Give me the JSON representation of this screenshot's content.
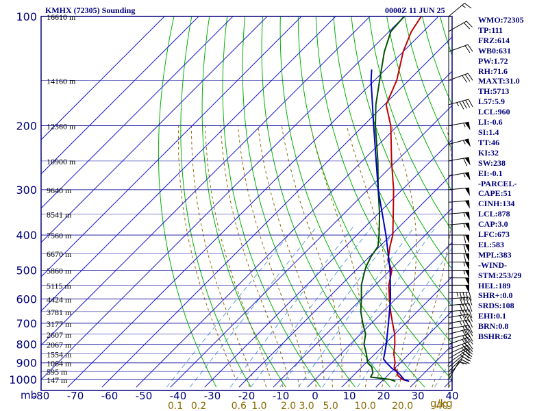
{
  "header": {
    "station": "KMHX (72305) Sounding",
    "time": "0000Z 11 JUN 25"
  },
  "units": {
    "pressure_unit": "mb",
    "mixing_ratio_unit": "g/kg"
  },
  "indices": [
    "WMO:72305",
    "TP:111",
    "FRZ:614",
    "WB0:631",
    "PW:1.72",
    "RH:71.6",
    "MAXT:31.0",
    "TH:5713",
    "L57:5.9",
    "LCL:960",
    "LI:-0.6",
    "SI:1.4",
    "TT:46",
    "KI:32",
    "SW:238",
    "EI:-0.1",
    "-PARCEL-",
    "CAPE:51",
    "CINH:134",
    "LCL:878",
    "CAP:3.0",
    "LFC:673",
    "EL:583",
    "MPL:383",
    "-WIND-",
    "STM:253/29",
    "HEL:189",
    "SHR+:0.0",
    "SRDS:108",
    "EHI:0.1",
    "BRN:0.8",
    "BSHR:62"
  ],
  "colors": {
    "frame": "#00007a",
    "isobar": "#2020a0",
    "isotherm": "#1a1ad0",
    "dry_adiabat": "#00b000",
    "moist_adiabat": "#8a6a00",
    "mixing_ratio": "#5aa0d0",
    "temperature": "#c00000",
    "dewpoint": "#005000",
    "parcel": "#0000c0",
    "mixing_label": "#8a6a00",
    "wind_barb": "#000000"
  },
  "chart_data": {
    "type": "skew-t",
    "log_p_axis": true,
    "ylim": [
      1000,
      100
    ],
    "xlim": [
      -80,
      40
    ],
    "pressure_ticks": [
      100,
      200,
      300,
      400,
      500,
      600,
      700,
      800,
      900,
      1000
    ],
    "temperature_ticks": [
      -80,
      -70,
      -60,
      -50,
      -40,
      -30,
      -20,
      -10,
      0,
      10,
      20,
      30,
      40
    ],
    "temperature_tick_labels": [
      "-80",
      "-70",
      "-60",
      "-50",
      "-40",
      "-30",
      "-20",
      "-10",
      "0",
      "10",
      "20",
      "30",
      "40"
    ],
    "height_labels": [
      {
        "p": 100,
        "label": "16610 m"
      },
      {
        "p": 150,
        "label": "14160 m"
      },
      {
        "p": 200,
        "label": "12360 m"
      },
      {
        "p": 250,
        "label": "10900 m"
      },
      {
        "p": 300,
        "label": "9640 m"
      },
      {
        "p": 350,
        "label": "8541 m"
      },
      {
        "p": 400,
        "label": "7560 m"
      },
      {
        "p": 450,
        "label": "6670 m"
      },
      {
        "p": 500,
        "label": "5860 m"
      },
      {
        "p": 550,
        "label": "5115 m"
      },
      {
        "p": 600,
        "label": "4424 m"
      },
      {
        "p": 650,
        "label": "3781 m"
      },
      {
        "p": 700,
        "label": "3177 m"
      },
      {
        "p": 750,
        "label": "2607 m"
      },
      {
        "p": 800,
        "label": "2067 m"
      },
      {
        "p": 850,
        "label": "1554 m"
      },
      {
        "p": 900,
        "label": "1064 m"
      },
      {
        "p": 950,
        "label": "595 m"
      },
      {
        "p": 1000,
        "label": "147 m"
      }
    ],
    "mixing_ratios": [
      {
        "w": 0.1,
        "label": "0.1"
      },
      {
        "w": 0.2,
        "label": "0.2"
      },
      {
        "w": 0.6,
        "label": "0.6"
      },
      {
        "w": 1.0,
        "label": "1.0"
      },
      {
        "w": 2.0,
        "label": "2.0"
      },
      {
        "w": 3.0,
        "label": "3.0"
      },
      {
        "w": 5.0,
        "label": "5.0"
      },
      {
        "w": 10.0,
        "label": "10.0"
      },
      {
        "w": 20.0,
        "label": "20.0"
      },
      {
        "w": 40.0,
        "label": "40"
      }
    ],
    "series": [
      {
        "kind": "temperature",
        "points": [
          [
            1012,
            28.0
          ],
          [
            1000,
            25.5
          ],
          [
            975,
            23.0
          ],
          [
            950,
            21.5
          ],
          [
            925,
            19.5
          ],
          [
            900,
            18.5
          ],
          [
            850,
            15.5
          ],
          [
            800,
            13.0
          ],
          [
            750,
            10.0
          ],
          [
            700,
            6.2
          ],
          [
            650,
            2.2
          ],
          [
            600,
            -1.8
          ],
          [
            550,
            -6.0
          ],
          [
            500,
            -9.5
          ],
          [
            470,
            -13.5
          ],
          [
            430,
            -17.0
          ],
          [
            400,
            -19.5
          ],
          [
            350,
            -25.5
          ],
          [
            300,
            -32.5
          ],
          [
            250,
            -41.5
          ],
          [
            200,
            -52.0
          ],
          [
            175,
            -59.5
          ],
          [
            150,
            -63.5
          ],
          [
            125,
            -70.0
          ],
          [
            110,
            -73.5
          ],
          [
            100,
            -75.0
          ]
        ]
      },
      {
        "kind": "dewpoint",
        "points": [
          [
            1012,
            24.0
          ],
          [
            1000,
            22.0
          ],
          [
            985,
            15.5
          ],
          [
            960,
            15.0
          ],
          [
            925,
            13.0
          ],
          [
            900,
            10.5
          ],
          [
            850,
            7.5
          ],
          [
            800,
            4.0
          ],
          [
            750,
            1.5
          ],
          [
            700,
            -2.5
          ],
          [
            650,
            -6.5
          ],
          [
            600,
            -10.0
          ],
          [
            550,
            -14.0
          ],
          [
            520,
            -16.0
          ],
          [
            490,
            -18.0
          ],
          [
            460,
            -19.5
          ],
          [
            430,
            -20.5
          ],
          [
            400,
            -23.5
          ],
          [
            350,
            -29.5
          ],
          [
            300,
            -37.0
          ],
          [
            250,
            -45.5
          ],
          [
            200,
            -56.5
          ],
          [
            175,
            -62.5
          ],
          [
            150,
            -68.5
          ],
          [
            125,
            -75.5
          ],
          [
            110,
            -79.5
          ],
          [
            100,
            -80.0
          ]
        ]
      },
      {
        "kind": "parcel",
        "points": [
          [
            1012,
            28.0
          ],
          [
            1000,
            26.0
          ],
          [
            960,
            22.5
          ],
          [
            930,
            19.0
          ],
          [
            900,
            16.0
          ],
          [
            878,
            14.0
          ],
          [
            850,
            12.8
          ],
          [
            800,
            10.5
          ],
          [
            700,
            5.0
          ],
          [
            600,
            -1.5
          ],
          [
            500,
            -10.0
          ],
          [
            400,
            -21.5
          ],
          [
            300,
            -37.0
          ],
          [
            200,
            -57.0
          ],
          [
            150,
            -71.0
          ],
          [
            140,
            -74.0
          ]
        ]
      }
    ],
    "wind_barbs": [
      {
        "p": 1000,
        "dir": 210,
        "spd": 10
      },
      {
        "p": 975,
        "dir": 220,
        "spd": 15
      },
      {
        "p": 950,
        "dir": 225,
        "spd": 20
      },
      {
        "p": 925,
        "dir": 230,
        "spd": 20
      },
      {
        "p": 900,
        "dir": 235,
        "spd": 25
      },
      {
        "p": 875,
        "dir": 240,
        "spd": 25
      },
      {
        "p": 850,
        "dir": 245,
        "spd": 25
      },
      {
        "p": 825,
        "dir": 250,
        "spd": 30
      },
      {
        "p": 800,
        "dir": 250,
        "spd": 30
      },
      {
        "p": 775,
        "dir": 255,
        "spd": 30
      },
      {
        "p": 750,
        "dir": 255,
        "spd": 30
      },
      {
        "p": 725,
        "dir": 260,
        "spd": 30
      },
      {
        "p": 700,
        "dir": 260,
        "spd": 35
      },
      {
        "p": 675,
        "dir": 260,
        "spd": 35
      },
      {
        "p": 650,
        "dir": 265,
        "spd": 35
      },
      {
        "p": 625,
        "dir": 265,
        "spd": 40
      },
      {
        "p": 600,
        "dir": 265,
        "spd": 40
      },
      {
        "p": 575,
        "dir": 270,
        "spd": 45
      },
      {
        "p": 550,
        "dir": 270,
        "spd": 50
      },
      {
        "p": 525,
        "dir": 270,
        "spd": 50
      },
      {
        "p": 500,
        "dir": 270,
        "spd": 55
      },
      {
        "p": 475,
        "dir": 270,
        "spd": 55
      },
      {
        "p": 450,
        "dir": 270,
        "spd": 60
      },
      {
        "p": 425,
        "dir": 270,
        "spd": 60
      },
      {
        "p": 400,
        "dir": 270,
        "spd": 60
      },
      {
        "p": 375,
        "dir": 265,
        "spd": 55
      },
      {
        "p": 350,
        "dir": 265,
        "spd": 55
      },
      {
        "p": 325,
        "dir": 265,
        "spd": 50
      },
      {
        "p": 300,
        "dir": 265,
        "spd": 50
      },
      {
        "p": 275,
        "dir": 260,
        "spd": 55
      },
      {
        "p": 250,
        "dir": 260,
        "spd": 60
      },
      {
        "p": 225,
        "dir": 255,
        "spd": 55
      },
      {
        "p": 200,
        "dir": 260,
        "spd": 55
      },
      {
        "p": 175,
        "dir": 255,
        "spd": 45
      },
      {
        "p": 150,
        "dir": 250,
        "spd": 30
      },
      {
        "p": 125,
        "dir": 250,
        "spd": 20
      },
      {
        "p": 110,
        "dir": 240,
        "spd": 20
      },
      {
        "p": 100,
        "dir": 230,
        "spd": 15
      }
    ]
  }
}
